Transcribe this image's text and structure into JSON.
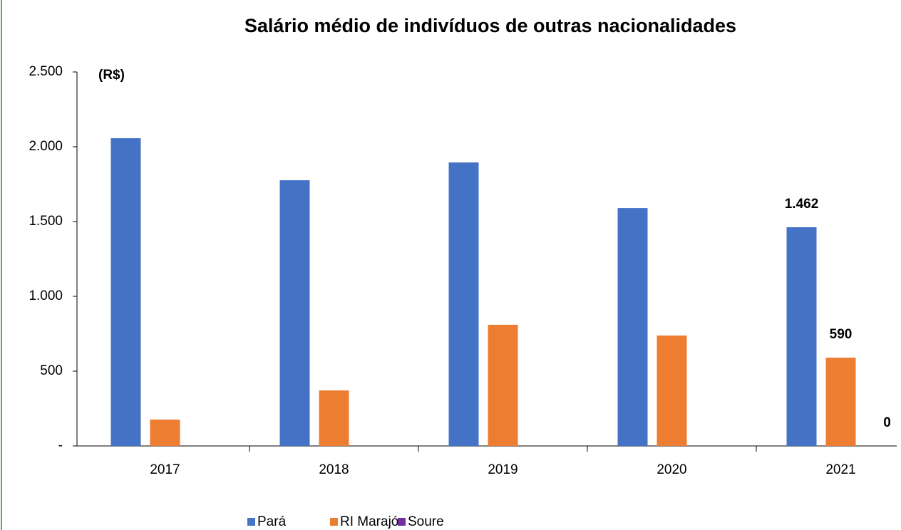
{
  "chart_data": {
    "type": "bar",
    "title": "Salário médio de indivíduos de outras nacionalidades",
    "y_label": "(R$)",
    "categories": [
      "2017",
      "2018",
      "2019",
      "2020",
      "2021"
    ],
    "series": [
      {
        "name": "Pará",
        "color": "#4472c4",
        "values": [
          2057,
          1776,
          1895,
          1590,
          1462
        ],
        "value_labels": [
          null,
          null,
          null,
          null,
          "1.462"
        ]
      },
      {
        "name": "RI Marajó",
        "color": "#ed7d31",
        "values": [
          176,
          371,
          810,
          738,
          590
        ],
        "value_labels": [
          null,
          null,
          null,
          null,
          "590"
        ]
      },
      {
        "name": "Soure",
        "color": "#7030a0",
        "values": [
          null,
          null,
          null,
          null,
          0
        ],
        "value_labels": [
          null,
          null,
          null,
          null,
          "0"
        ]
      }
    ],
    "ylim": [
      0,
      2500
    ],
    "yticks": [
      {
        "value": 0,
        "label": "-"
      },
      500,
      {
        "value": 1000,
        "label": "1.000"
      },
      {
        "value": 1500,
        "label": "1.500"
      },
      {
        "value": 2000,
        "label": "2.000"
      },
      {
        "value": 2500,
        "label": "2.500"
      }
    ],
    "legend": "bottom"
  }
}
